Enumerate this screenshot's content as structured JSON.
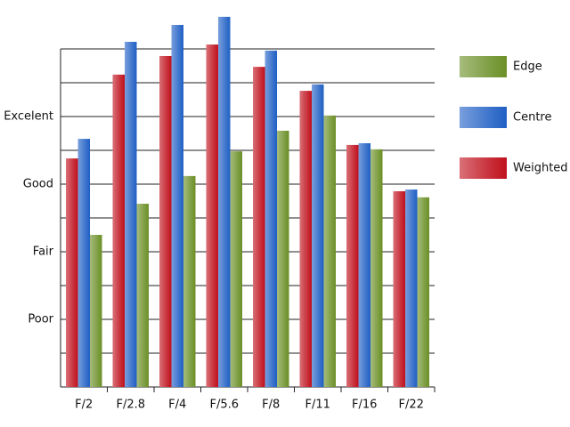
{
  "chart_data": {
    "type": "bar",
    "categories": [
      "F/2",
      "F/2.8",
      "F/4",
      "F/5.6",
      "F/8",
      "F/11",
      "F/16",
      "F/22"
    ],
    "series": [
      {
        "name": "Weighted",
        "color": "#c0101c",
        "values": [
          6.76,
          9.24,
          9.79,
          10.13,
          9.47,
          8.76,
          7.16,
          5.79
        ]
      },
      {
        "name": "Centre",
        "color": "#1f5fc4",
        "values": [
          7.34,
          10.21,
          10.71,
          10.95,
          9.95,
          8.95,
          7.21,
          5.84
        ]
      },
      {
        "name": "Edge",
        "color": "#6b8f26",
        "values": [
          4.5,
          5.42,
          6.24,
          6.97,
          7.58,
          8.03,
          7.03,
          5.61
        ]
      }
    ],
    "ylim": [
      0,
      10
    ],
    "yticks": [
      {
        "value": 2,
        "label": "Poor"
      },
      {
        "value": 4,
        "label": "Fair"
      },
      {
        "value": 6,
        "label": "Good"
      },
      {
        "value": 8,
        "label": "Excelent"
      }
    ],
    "minor_yticks": [
      1,
      3,
      5,
      7,
      9,
      10
    ],
    "grid": true,
    "legend": "right"
  }
}
